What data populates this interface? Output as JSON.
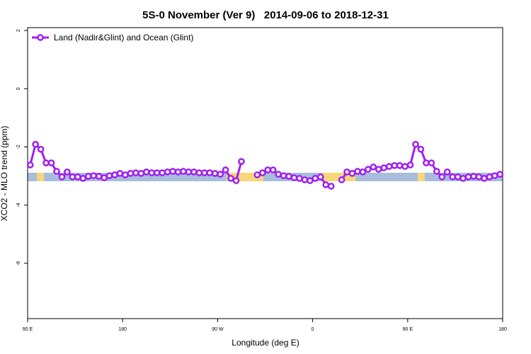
{
  "chart_data": {
    "type": "line",
    "title": "5S-0 November (Ver 9)   2014-09-06 to 2018-12-31",
    "x_label": "Longitude (deg E)",
    "y_label": "XCO2 - MLO trend (ppm)",
    "xlim": [
      90,
      540
    ],
    "ylim": [
      -7.9,
      2.1
    ],
    "xticks": [
      {
        "value": 90,
        "label": "90 E"
      },
      {
        "value": 180,
        "label": "180"
      },
      {
        "value": 270,
        "label": "90 W"
      },
      {
        "value": 360,
        "label": "0"
      },
      {
        "value": 450,
        "label": "90 E"
      },
      {
        "value": 540,
        "label": "180"
      }
    ],
    "yticks": [
      2,
      0,
      -2,
      -4,
      -6
    ],
    "legend": "top-left",
    "x": [
      92.5,
      97.5,
      102.5,
      107.5,
      112.5,
      117.5,
      122.5,
      127.5,
      132.5,
      137.5,
      142.5,
      147.5,
      152.5,
      157.5,
      162.5,
      167.5,
      172.5,
      177.5,
      182.5,
      187.5,
      192.5,
      197.5,
      202.5,
      207.5,
      212.5,
      217.5,
      222.5,
      227.5,
      232.5,
      237.5,
      242.5,
      247.5,
      252.5,
      257.5,
      262.5,
      267.5,
      272.5,
      277.5,
      282.5,
      287.5,
      292.5,
      297.5,
      302.5,
      307.5,
      312.5,
      317.5,
      322.5,
      327.5,
      332.5,
      337.5,
      342.5,
      347.5,
      352.5,
      357.5,
      362.5,
      367.5,
      372.5,
      377.5,
      382.5,
      387.5,
      392.5,
      397.5,
      402.5,
      407.5,
      412.5,
      417.5,
      422.5,
      427.5,
      432.5,
      437.5,
      442.5,
      447.5,
      452.5,
      457.5,
      462.5,
      467.5,
      472.5,
      477.5,
      482.5,
      487.5,
      492.5,
      497.5,
      502.5,
      507.5,
      512.5,
      517.5,
      522.5,
      527.5,
      532.5,
      537.5
    ],
    "series": [
      {
        "name": "Land (Nadir&Glint) and Ocean (Glint)",
        "color": "#a020f0",
        "values": [
          -2.62,
          -1.91,
          -2.08,
          -2.55,
          -2.55,
          -2.84,
          -3.03,
          -2.86,
          -3.03,
          -3.03,
          -3.08,
          -3.01,
          -2.99,
          -3.01,
          -3.06,
          -2.99,
          -2.96,
          -2.91,
          -2.96,
          -2.91,
          -2.89,
          -2.91,
          -2.86,
          -2.89,
          -2.89,
          -2.89,
          -2.86,
          -2.84,
          -2.86,
          -2.84,
          -2.86,
          -2.86,
          -2.89,
          -2.89,
          -2.89,
          -2.91,
          -2.94,
          -2.79,
          -3.08,
          -3.16,
          -2.5,
          null,
          null,
          -2.96,
          -2.89,
          -2.79,
          -2.79,
          -2.94,
          -2.99,
          -3.01,
          -3.06,
          -3.08,
          -3.13,
          -3.16,
          -3.08,
          -3.03,
          -3.3,
          -3.35,
          null,
          -3.13,
          -2.86,
          -2.91,
          -2.84,
          -2.86,
          -2.77,
          -2.69,
          -2.77,
          -2.72,
          -2.67,
          -2.64,
          -2.64,
          -2.67,
          -2.62,
          -1.91,
          -2.08,
          -2.55,
          -2.55,
          -2.84,
          -3.03,
          -2.86,
          -3.03,
          -3.03,
          -3.08,
          -3.03,
          -3.01,
          -3.03,
          -3.08,
          -3.03,
          -2.99,
          -2.94
        ]
      }
    ]
  }
}
